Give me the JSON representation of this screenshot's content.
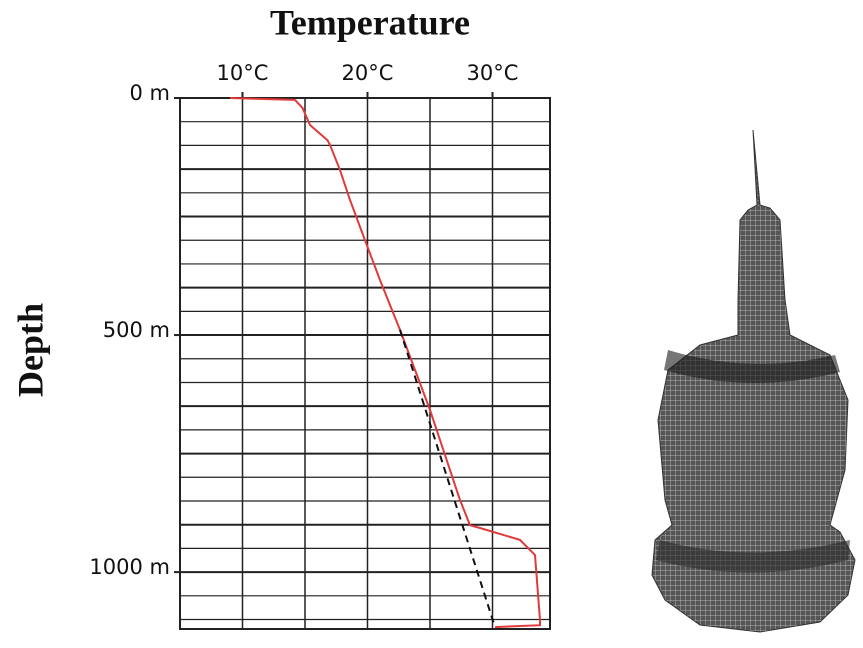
{
  "chart_data": {
    "type": "line",
    "title": "Temperature",
    "y_label": "Depth",
    "xlim": [
      5,
      34.6
    ],
    "ylim": [
      0,
      1120
    ],
    "y_inverted": true,
    "x_axis_position": "top",
    "xticks": [
      {
        "value": 10,
        "label": "10°C"
      },
      {
        "value": 20,
        "label": "20°C"
      },
      {
        "value": 30,
        "label": "30°C"
      }
    ],
    "yticks": [
      {
        "value": 0,
        "label": "0 m"
      },
      {
        "value": 500,
        "label": "500 m"
      },
      {
        "value": 1000,
        "label": "1000 m"
      }
    ],
    "xgrid": [
      5,
      10,
      15,
      20,
      25,
      30
    ],
    "ygrid": [
      0,
      50,
      100,
      150,
      200,
      250,
      300,
      350,
      400,
      450,
      500,
      550,
      600,
      650,
      700,
      750,
      800,
      850,
      900,
      950,
      1000,
      1050,
      1100
    ],
    "series": [
      {
        "color": "#e03a3a",
        "style": "solid",
        "x": [
          9,
          14.2,
          14.8,
          15.4,
          16.8,
          17,
          17.8,
          18.6,
          19.8,
          21,
          22.6,
          25,
          27.4,
          28.2,
          29,
          32.2,
          33.4,
          33.8,
          33.8,
          30.2
        ],
        "values": [
          0,
          4,
          21,
          57,
          89,
          99,
          152,
          215,
          300,
          384,
          489,
          658,
          848,
          901,
          907,
          932,
          964,
          1101,
          1112,
          1116
        ]
      },
      {
        "color": "#111111",
        "style": "dashed",
        "x": [
          22.6,
          30.2
        ],
        "values": [
          489,
          1116
        ]
      }
    ]
  }
}
